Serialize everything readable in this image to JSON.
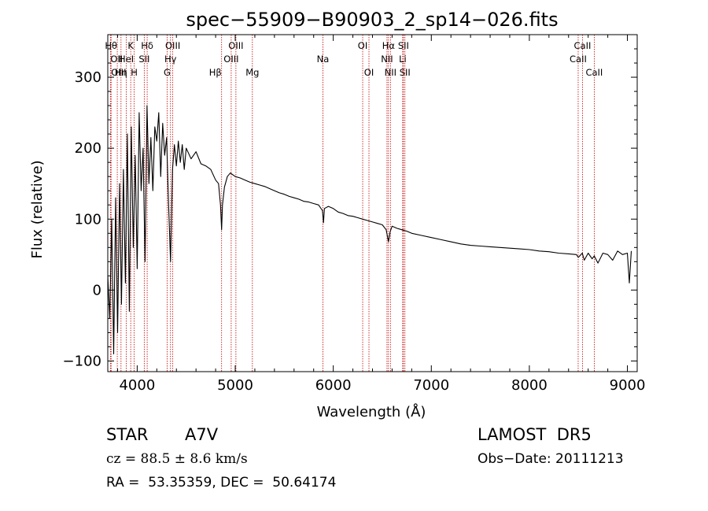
{
  "chart_data": {
    "type": "line",
    "title": "spec−55909−B90903_2_sp14−026.fits",
    "xlabel": "Wavelength (Å)",
    "ylabel": "Flux (relative)",
    "xlim": [
      3700,
      9100
    ],
    "ylim": [
      -115,
      360
    ],
    "x_ticks": [
      4000,
      5000,
      6000,
      7000,
      8000,
      9000
    ],
    "y_ticks": [
      -100,
      0,
      100,
      200,
      300
    ],
    "x_tick_labels": [
      "4000",
      "5000",
      "6000",
      "7000",
      "8000",
      "9000"
    ],
    "y_tick_labels": [
      "−100",
      "0",
      "100",
      "200",
      "300"
    ],
    "grid": false,
    "series": [
      {
        "name": "",
        "color": "#000000",
        "x": [
          3700,
          3720,
          3740,
          3760,
          3780,
          3800,
          3820,
          3840,
          3860,
          3880,
          3900,
          3920,
          3940,
          3960,
          3980,
          4000,
          4020,
          4040,
          4060,
          4080,
          4100,
          4120,
          4140,
          4160,
          4180,
          4200,
          4220,
          4240,
          4260,
          4280,
          4300,
          4320,
          4340,
          4360,
          4380,
          4400,
          4420,
          4440,
          4460,
          4480,
          4500,
          4550,
          4600,
          4650,
          4700,
          4750,
          4800,
          4830,
          4850,
          4861,
          4870,
          4890,
          4920,
          4950,
          5000,
          5050,
          5100,
          5150,
          5200,
          5250,
          5300,
          5350,
          5400,
          5450,
          5500,
          5550,
          5600,
          5650,
          5700,
          5750,
          5800,
          5850,
          5890,
          5900,
          5910,
          5950,
          6000,
          6050,
          6100,
          6150,
          6200,
          6250,
          6300,
          6350,
          6400,
          6450,
          6500,
          6540,
          6563,
          6580,
          6600,
          6650,
          6700,
          6750,
          6800,
          6900,
          7000,
          7100,
          7200,
          7300,
          7400,
          7500,
          7600,
          7700,
          7800,
          7900,
          8000,
          8100,
          8200,
          8300,
          8400,
          8480,
          8500,
          8540,
          8560,
          8600,
          8640,
          8662,
          8700,
          8750,
          8800,
          8850,
          8900,
          8950,
          9000,
          9020,
          9040
        ],
        "values": [
          20,
          -40,
          100,
          -90,
          130,
          -60,
          150,
          -20,
          170,
          10,
          220,
          -30,
          230,
          60,
          190,
          30,
          250,
          140,
          200,
          40,
          260,
          150,
          215,
          140,
          230,
          210,
          250,
          160,
          235,
          190,
          215,
          120,
          40,
          170,
          205,
          175,
          210,
          180,
          205,
          170,
          200,
          185,
          195,
          178,
          175,
          170,
          155,
          150,
          120,
          85,
          120,
          145,
          160,
          165,
          160,
          158,
          155,
          152,
          150,
          148,
          146,
          143,
          140,
          137,
          135,
          132,
          130,
          128,
          125,
          124,
          122,
          120,
          112,
          95,
          115,
          118,
          115,
          110,
          108,
          105,
          104,
          102,
          100,
          98,
          96,
          94,
          92,
          85,
          68,
          82,
          90,
          87,
          85,
          83,
          80,
          77,
          74,
          71,
          68,
          65,
          63,
          62,
          61,
          60,
          59,
          58,
          57,
          55,
          54,
          52,
          51,
          50,
          46,
          52,
          42,
          52,
          44,
          48,
          38,
          52,
          50,
          42,
          55,
          50,
          52,
          10,
          55
        ]
      }
    ],
    "line_ids": [
      {
        "label": "Hθ",
        "x": 3797,
        "row": 1,
        "align": "end"
      },
      {
        "label": "OII",
        "x": 3727,
        "row": 2,
        "align": "start"
      },
      {
        "label": "OIII",
        "x": 3734,
        "row": 3,
        "align": "start"
      },
      {
        "label": "K",
        "x": 3934,
        "row": 1,
        "align": "middle"
      },
      {
        "label": "HeI",
        "x": 3889,
        "row": 2,
        "align": "middle"
      },
      {
        "label": "Hη",
        "x": 3835,
        "row": 3,
        "align": "middle"
      },
      {
        "label": "Hδ",
        "x": 4102,
        "row": 1,
        "align": "middle"
      },
      {
        "label": "SII",
        "x": 4072,
        "row": 2,
        "align": "middle"
      },
      {
        "label": "H",
        "x": 3969,
        "row": 3,
        "align": "middle"
      },
      {
        "label": "OIII",
        "x": 4363,
        "row": 1,
        "align": "middle"
      },
      {
        "label": "Hγ",
        "x": 4340,
        "row": 2,
        "align": "middle"
      },
      {
        "label": "G",
        "x": 4305,
        "row": 3,
        "align": "middle"
      },
      {
        "label": "OIII",
        "x": 5007,
        "row": 1,
        "align": "middle"
      },
      {
        "label": "OIII",
        "x": 4959,
        "row": 2,
        "align": "middle"
      },
      {
        "label": "Hβ",
        "x": 4861,
        "row": 3,
        "align": "end"
      },
      {
        "label": "Mg",
        "x": 5175,
        "row": 3,
        "align": "middle"
      },
      {
        "label": "Na",
        "x": 5894,
        "row": 2,
        "align": "middle"
      },
      {
        "label": "OI",
        "x": 6300,
        "row": 1,
        "align": "middle"
      },
      {
        "label": "OI",
        "x": 6364,
        "row": 3,
        "align": "middle"
      },
      {
        "label": "Hα",
        "x": 6563,
        "row": 1,
        "align": "middle"
      },
      {
        "label": "SII",
        "x": 6716,
        "row": 1,
        "align": "middle"
      },
      {
        "label": "NII",
        "x": 6548,
        "row": 2,
        "align": "middle"
      },
      {
        "label": "Li",
        "x": 6708,
        "row": 2,
        "align": "middle"
      },
      {
        "label": "NII",
        "x": 6583,
        "row": 3,
        "align": "middle"
      },
      {
        "label": "SII",
        "x": 6731,
        "row": 3,
        "align": "middle"
      },
      {
        "label": "CaII",
        "x": 8542,
        "row": 1,
        "align": "middle"
      },
      {
        "label": "CaII",
        "x": 8498,
        "row": 2,
        "align": "middle"
      },
      {
        "label": "CaII",
        "x": 8662,
        "row": 3,
        "align": "middle"
      }
    ],
    "line_color": "#c00000"
  },
  "info": {
    "object_type": "STAR",
    "subclass": "A7V",
    "survey": "LAMOST  DR5",
    "cz_text": "cz = 88.5 ± 8.6 km/s",
    "obs_date": "Obs−Date: 20111213",
    "radec": "RA =  53.35359, DEC =  50.64174"
  }
}
